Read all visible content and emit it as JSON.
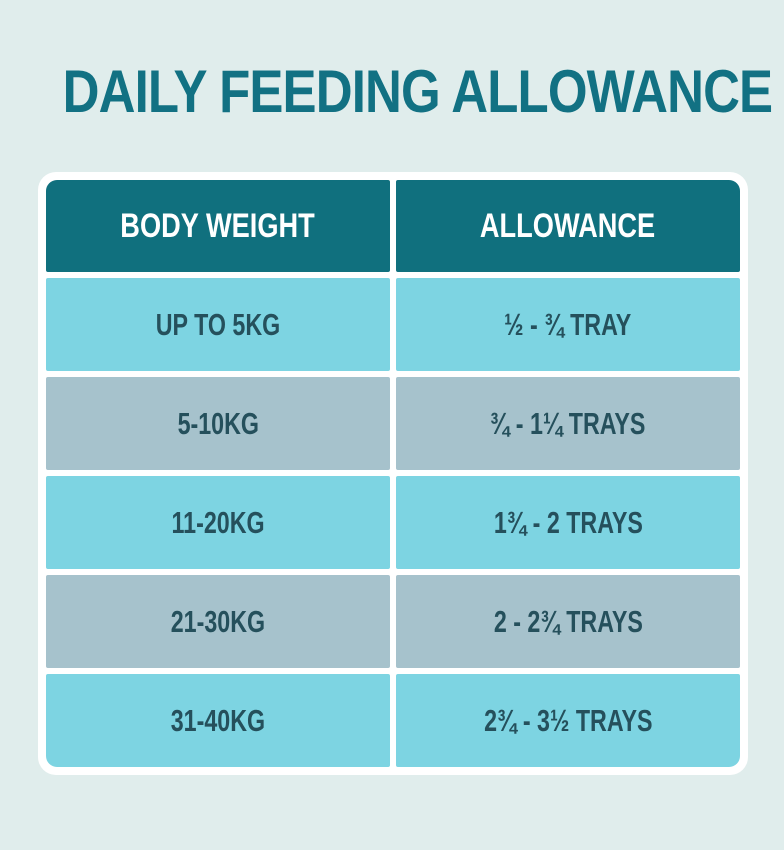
{
  "title": "DAILY FEEDING ALLOWANCE",
  "colors": {
    "background": "#e0edec",
    "frame": "#ffffff",
    "header_teal": "#10707e",
    "title_teal": "#127183",
    "row_cyan": "#7dd4e2",
    "row_gray": "#a6c2cc",
    "cell_text": "#25505c",
    "header_text": "#ffffff"
  },
  "chart_data": {
    "type": "table",
    "title": "DAILY FEEDING ALLOWANCE",
    "columns": [
      "BODY WEIGHT",
      "ALLOWANCE"
    ],
    "rows": [
      [
        "UP TO 5KG",
        "½ - ¾ TRAY"
      ],
      [
        "5-10KG",
        "¾ - 1¼ TRAYS"
      ],
      [
        "11-20KG",
        "1¾ - 2 TRAYS"
      ],
      [
        "21-30KG",
        "2 - 2¾ TRAYS"
      ],
      [
        "31-40KG",
        "2¾ - 3½ TRAYS"
      ]
    ]
  }
}
